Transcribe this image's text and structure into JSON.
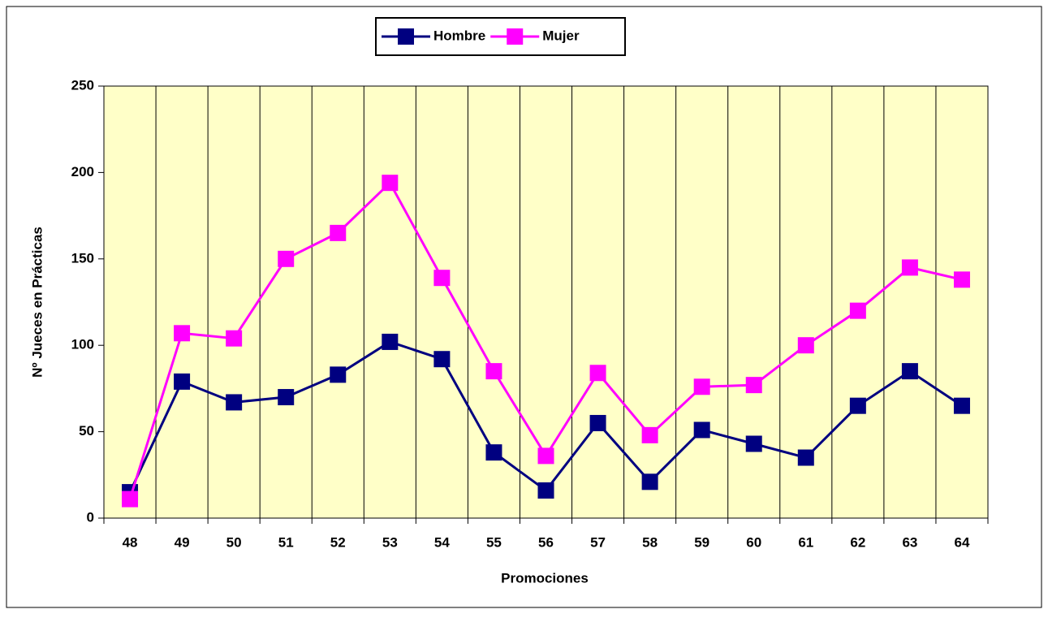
{
  "chart_data": {
    "type": "line",
    "x_label": "Promociones",
    "y_label": "Nº Jueces en Prácticas",
    "categories": [
      "48",
      "49",
      "50",
      "51",
      "52",
      "53",
      "54",
      "55",
      "56",
      "57",
      "58",
      "59",
      "60",
      "61",
      "62",
      "63",
      "64"
    ],
    "series": [
      {
        "name": "Hombre",
        "color": "#000080",
        "values": [
          15,
          79,
          67,
          70,
          83,
          102,
          92,
          38,
          16,
          55,
          21,
          51,
          43,
          35,
          65,
          85,
          65
        ]
      },
      {
        "name": "Mujer",
        "color": "#ff00ff",
        "values": [
          11,
          107,
          104,
          150,
          165,
          194,
          139,
          85,
          36,
          84,
          48,
          76,
          77,
          100,
          120,
          145,
          138
        ]
      }
    ],
    "ylim": [
      0,
      250
    ],
    "yticks": [
      0,
      50,
      100,
      150,
      200,
      250
    ],
    "grid": "x",
    "legend": "top",
    "background": "#ffffc8"
  }
}
